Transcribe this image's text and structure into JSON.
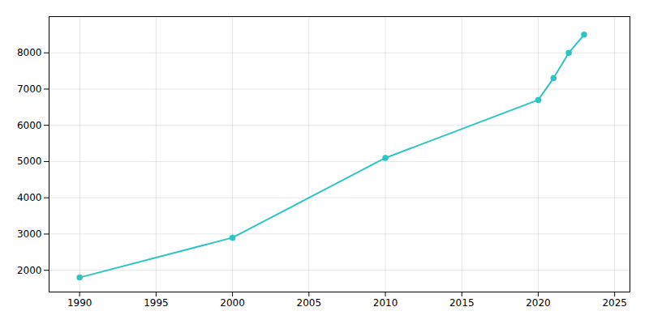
{
  "chart_data": {
    "type": "line",
    "x": [
      1990,
      2000,
      2010,
      2020,
      2021,
      2022,
      2023
    ],
    "values": [
      1800,
      2900,
      5100,
      6700,
      7300,
      8000,
      8500
    ],
    "color": "#2EC4C4",
    "marker": "circle",
    "xlim": [
      1988,
      2026
    ],
    "ylim": [
      1400,
      9000
    ],
    "xticks": [
      1990,
      1995,
      2000,
      2005,
      2010,
      2015,
      2020,
      2025
    ],
    "yticks": [
      2000,
      3000,
      4000,
      5000,
      6000,
      7000,
      8000
    ],
    "grid": true
  }
}
